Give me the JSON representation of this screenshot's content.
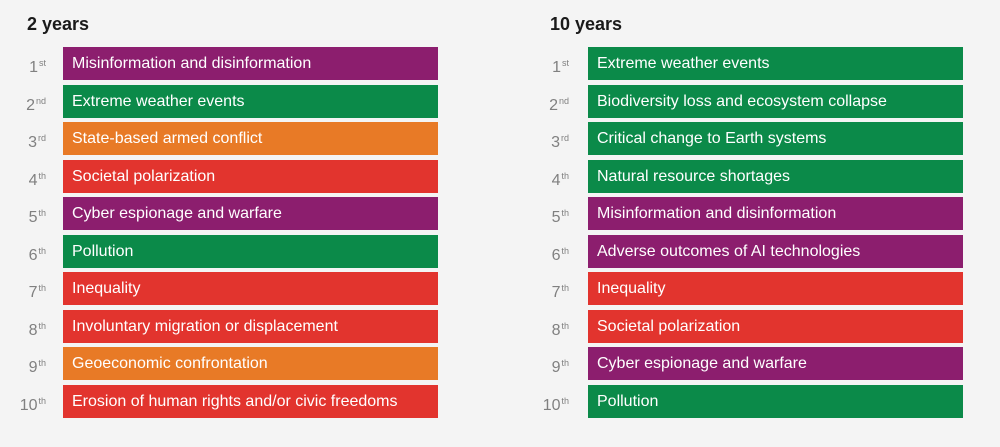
{
  "columns": [
    {
      "title": "2 years",
      "items": [
        {
          "num": "1",
          "suffix": "st",
          "label": "Misinformation and disinformation",
          "color": "#8c1e6e"
        },
        {
          "num": "2",
          "suffix": "nd",
          "label": "Extreme weather events",
          "color": "#0b8a49"
        },
        {
          "num": "3",
          "suffix": "rd",
          "label": "State-based armed conflict",
          "color": "#e87a26"
        },
        {
          "num": "4",
          "suffix": "th",
          "label": "Societal polarization",
          "color": "#e2342e"
        },
        {
          "num": "5",
          "suffix": "th",
          "label": "Cyber espionage and warfare",
          "color": "#8c1e6e"
        },
        {
          "num": "6",
          "suffix": "th",
          "label": "Pollution",
          "color": "#0b8a49"
        },
        {
          "num": "7",
          "suffix": "th",
          "label": "Inequality",
          "color": "#e2342e"
        },
        {
          "num": "8",
          "suffix": "th",
          "label": "Involuntary migration or displacement",
          "color": "#e2342e"
        },
        {
          "num": "9",
          "suffix": "th",
          "label": "Geoeconomic confrontation",
          "color": "#e87a26"
        },
        {
          "num": "10",
          "suffix": "th",
          "label": "Erosion of human rights and/or civic freedoms",
          "color": "#e2342e"
        }
      ]
    },
    {
      "title": "10 years",
      "items": [
        {
          "num": "1",
          "suffix": "st",
          "label": "Extreme weather events",
          "color": "#0b8a49"
        },
        {
          "num": "2",
          "suffix": "nd",
          "label": "Biodiversity loss and ecosystem collapse",
          "color": "#0b8a49"
        },
        {
          "num": "3",
          "suffix": "rd",
          "label": "Critical change to Earth systems",
          "color": "#0b8a49"
        },
        {
          "num": "4",
          "suffix": "th",
          "label": "Natural resource shortages",
          "color": "#0b8a49"
        },
        {
          "num": "5",
          "suffix": "th",
          "label": "Misinformation and disinformation",
          "color": "#8c1e6e"
        },
        {
          "num": "6",
          "suffix": "th",
          "label": "Adverse outcomes of AI technologies",
          "color": "#8c1e6e"
        },
        {
          "num": "7",
          "suffix": "th",
          "label": "Inequality",
          "color": "#e2342e"
        },
        {
          "num": "8",
          "suffix": "th",
          "label": "Societal polarization",
          "color": "#e2342e"
        },
        {
          "num": "9",
          "suffix": "th",
          "label": "Cyber espionage and warfare",
          "color": "#8c1e6e"
        },
        {
          "num": "10",
          "suffix": "th",
          "label": "Pollution",
          "color": "#0b8a49"
        }
      ]
    }
  ]
}
